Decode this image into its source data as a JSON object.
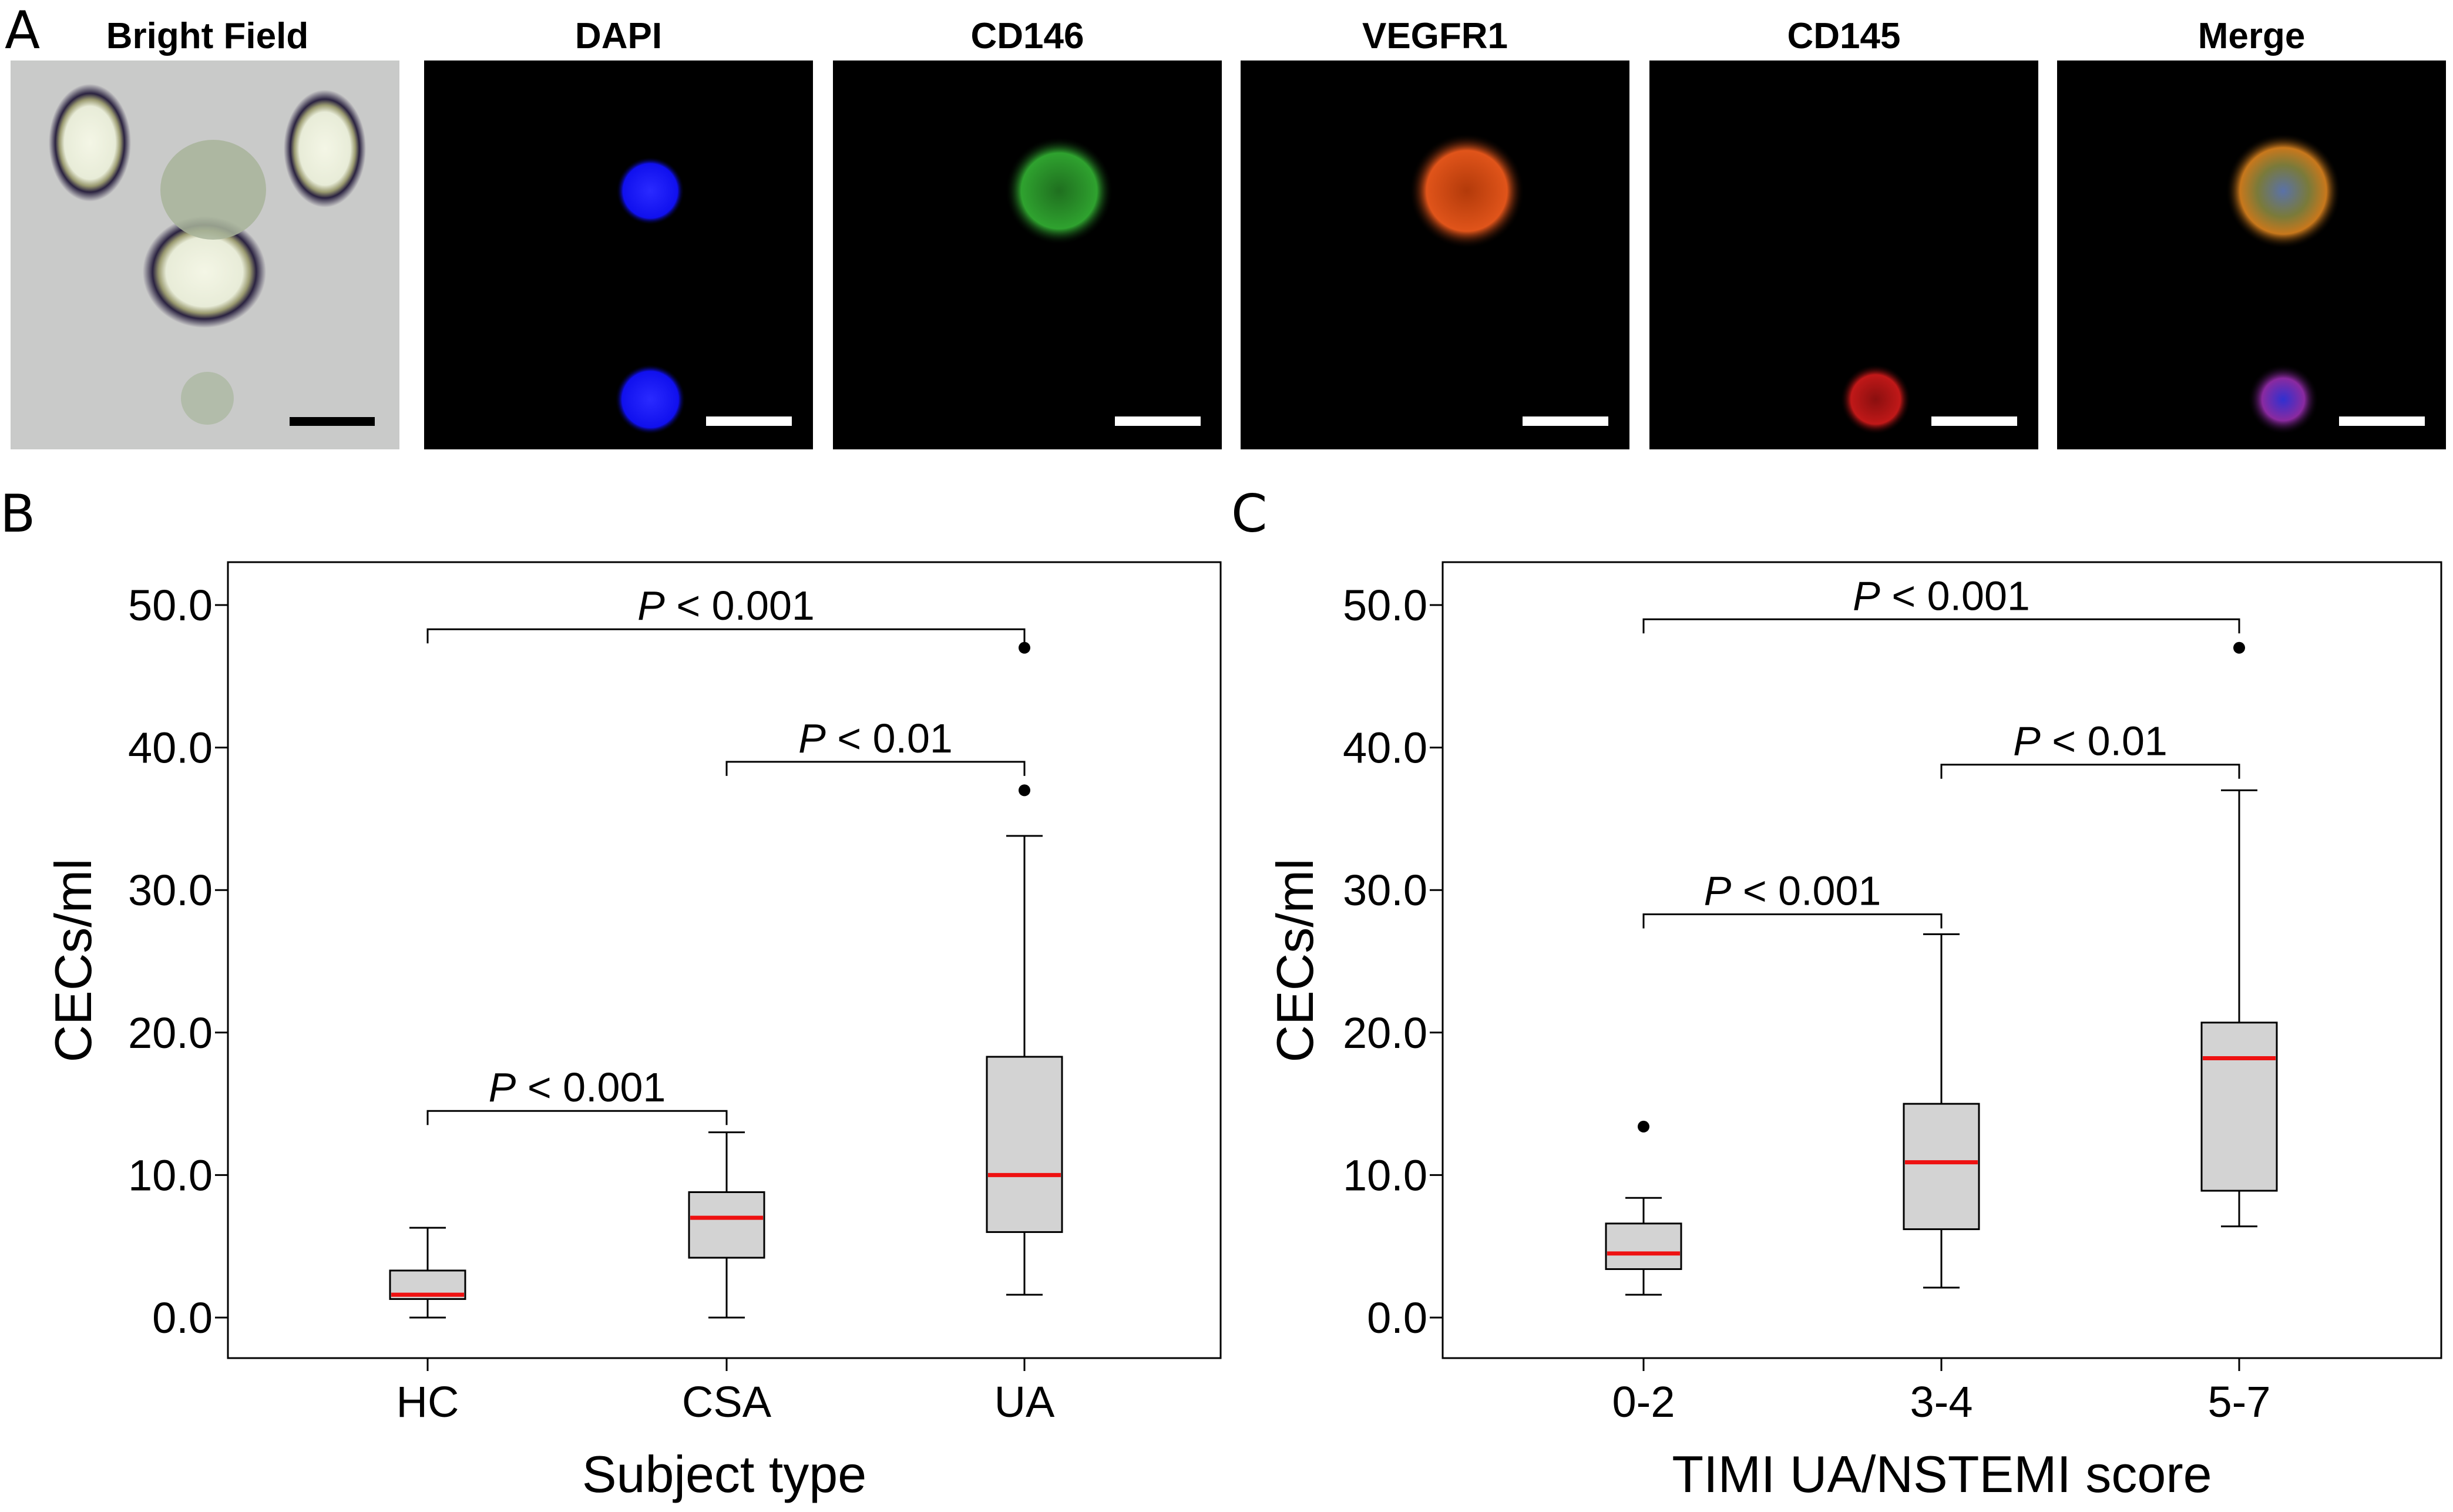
{
  "panel_a": {
    "letter": "A",
    "images": [
      {
        "title": "Bright Field",
        "channel": "bright-field"
      },
      {
        "title": "DAPI",
        "channel": "dapi",
        "color": "#1a1aff"
      },
      {
        "title": "CD146",
        "channel": "cd146",
        "color": "#2fa02f"
      },
      {
        "title": "VEGFR1",
        "channel": "vegfr1",
        "color": "#e05010"
      },
      {
        "title": "CD145",
        "channel": "cd145",
        "color": "#c01010"
      },
      {
        "title": "Merge",
        "channel": "merge"
      }
    ]
  },
  "chart_data": [
    {
      "type": "box",
      "panel": "B",
      "xlabel": "Subject type",
      "ylabel": "CECs/ml",
      "ylim": [
        -2.5,
        52.5
      ],
      "yticks": [
        "0.0",
        "10.0",
        "20.0",
        "30.0",
        "40.0",
        "50.0"
      ],
      "categories": [
        "HC",
        "CSA",
        "UA"
      ],
      "boxes": [
        {
          "min": 0.0,
          "q1": 1.3,
          "median": 1.6,
          "q3": 3.3,
          "max": 6.3,
          "outliers": []
        },
        {
          "min": 0.0,
          "q1": 4.2,
          "median": 7.0,
          "q3": 8.8,
          "max": 13.0,
          "outliers": []
        },
        {
          "min": 1.6,
          "q1": 6.0,
          "median": 10.0,
          "q3": 18.3,
          "max": 33.8,
          "outliers": [
            37.0,
            47.0
          ]
        }
      ],
      "comparisons": [
        {
          "from": 0,
          "to": 2,
          "y": 48.3,
          "p": "< 0.001"
        },
        {
          "from": 1,
          "to": 2,
          "y": 39.0,
          "p": "< 0.01"
        },
        {
          "from": 0,
          "to": 1,
          "y": 14.5,
          "p": "< 0.001"
        }
      ],
      "median_color": "#ee1111",
      "box_fill": "#d3d3d3"
    },
    {
      "type": "box",
      "panel": "C",
      "xlabel": "TIMI UA/NSTEMI score",
      "ylabel": "CECs/ml",
      "ylim": [
        -2.5,
        52.5
      ],
      "yticks": [
        "0.0",
        "10.0",
        "20.0",
        "30.0",
        "40.0",
        "50.0"
      ],
      "categories": [
        "0-2",
        "3-4",
        "5-7"
      ],
      "boxes": [
        {
          "min": 1.6,
          "q1": 3.4,
          "median": 4.5,
          "q3": 6.6,
          "max": 8.4,
          "outliers": [
            13.4
          ]
        },
        {
          "min": 2.1,
          "q1": 6.2,
          "median": 10.9,
          "q3": 15.0,
          "max": 26.9,
          "outliers": []
        },
        {
          "min": 6.4,
          "q1": 8.9,
          "median": 18.2,
          "q3": 20.7,
          "max": 37.0,
          "outliers": [
            47.0
          ]
        }
      ],
      "comparisons": [
        {
          "from": 0,
          "to": 2,
          "y": 49.0,
          "p": "< 0.001"
        },
        {
          "from": 1,
          "to": 2,
          "y": 38.8,
          "p": "< 0.01"
        },
        {
          "from": 0,
          "to": 1,
          "y": 28.3,
          "p": "< 0.001"
        }
      ],
      "median_color": "#ee1111",
      "box_fill": "#d3d3d3"
    }
  ]
}
